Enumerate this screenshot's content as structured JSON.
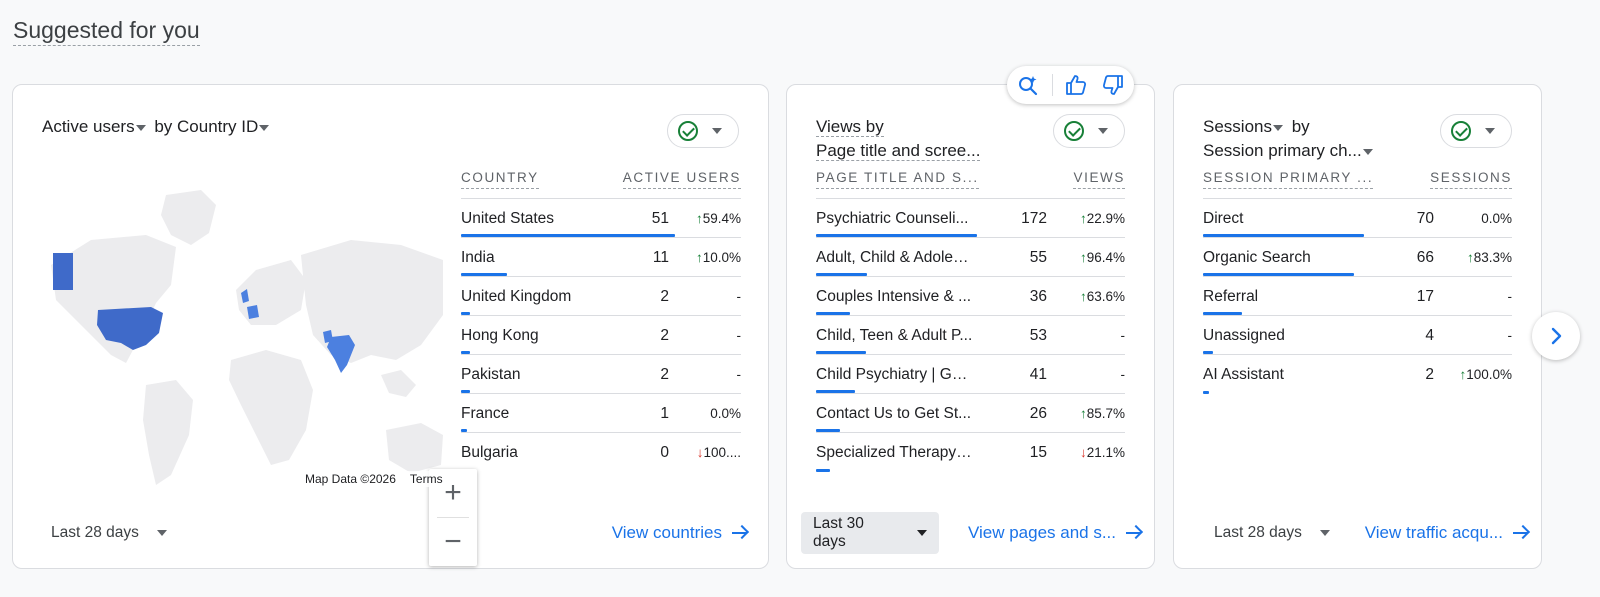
{
  "section_title": "Suggested for you",
  "colors": {
    "accent": "#1a73e8",
    "up": "#188038",
    "down": "#d93025",
    "map_highlight": "#3f6ac9",
    "map_land": "#ececee"
  },
  "cards": [
    {
      "title_metric": "Active users",
      "title_by": "by Country ID",
      "columns": [
        "COUNTRY",
        "ACTIVE USERS"
      ],
      "rows": [
        {
          "label": "United States",
          "value": "51",
          "delta": "59.4%",
          "trend": "up",
          "share": 1.0
        },
        {
          "label": "India",
          "value": "11",
          "delta": "10.0%",
          "trend": "up",
          "share": 0.216
        },
        {
          "label": "United Kingdom",
          "value": "2",
          "delta": "-",
          "trend": "none",
          "share": 0.04
        },
        {
          "label": "Hong Kong",
          "value": "2",
          "delta": "-",
          "trend": "none",
          "share": 0.04
        },
        {
          "label": "Pakistan",
          "value": "2",
          "delta": "-",
          "trend": "none",
          "share": 0.04
        },
        {
          "label": "France",
          "value": "1",
          "delta": "0.0%",
          "trend": "none",
          "share": 0.02
        },
        {
          "label": "Bulgaria",
          "value": "0",
          "delta": "100....",
          "trend": "down",
          "share": 0
        }
      ],
      "map_credit": "Map Data ©2026",
      "map_terms": "Terms",
      "date_range": "Last 28 days",
      "view_link": "View countries"
    },
    {
      "title_line1": "Views by",
      "title_line2": "Page title and scree...",
      "columns": [
        "PAGE TITLE AND S...",
        "VIEWS"
      ],
      "rows": [
        {
          "label": "Psychiatric Counseli...",
          "value": "172",
          "delta": "22.9%",
          "trend": "up",
          "share": 1.0
        },
        {
          "label": "Adult, Child & Adoles...",
          "value": "55",
          "delta": "96.4%",
          "trend": "up",
          "share": 0.32
        },
        {
          "label": "Couples Intensive & ...",
          "value": "36",
          "delta": "63.6%",
          "trend": "up",
          "share": 0.21
        },
        {
          "label": "Child, Teen & Adult P...",
          "value": "53",
          "delta": "-",
          "trend": "none",
          "share": 0.31
        },
        {
          "label": "Child Psychiatry | GA...",
          "value": "41",
          "delta": "-",
          "trend": "none",
          "share": 0.24
        },
        {
          "label": "Contact Us to Get St...",
          "value": "26",
          "delta": "85.7%",
          "trend": "up",
          "share": 0.15
        },
        {
          "label": "Specialized Therapy ...",
          "value": "15",
          "delta": "21.1%",
          "trend": "down",
          "share": 0.09
        }
      ],
      "date_range": "Last 30 days",
      "view_link": "View pages and s..."
    },
    {
      "title_metric": "Sessions",
      "title_by": "by",
      "title_line2": "Session primary ch...",
      "columns": [
        "SESSION PRIMARY ...",
        "SESSIONS"
      ],
      "rows": [
        {
          "label": "Direct",
          "value": "70",
          "delta": "0.0%",
          "trend": "none",
          "share": 1.0
        },
        {
          "label": "Organic Search",
          "value": "66",
          "delta": "83.3%",
          "trend": "up",
          "share": 0.94
        },
        {
          "label": "Referral",
          "value": "17",
          "delta": "-",
          "trend": "none",
          "share": 0.24
        },
        {
          "label": "Unassigned",
          "value": "4",
          "delta": "-",
          "trend": "none",
          "share": 0.06
        },
        {
          "label": "AI Assistant",
          "value": "2",
          "delta": "100.0%",
          "trend": "up",
          "share": 0.03
        }
      ],
      "date_range": "Last 28 days",
      "view_link": "View traffic acqu..."
    }
  ],
  "icons": {
    "feedback": [
      "sparkle-search-icon",
      "thumbs-up-icon",
      "thumbs-down-icon"
    ],
    "next": "chevron-right-icon"
  }
}
